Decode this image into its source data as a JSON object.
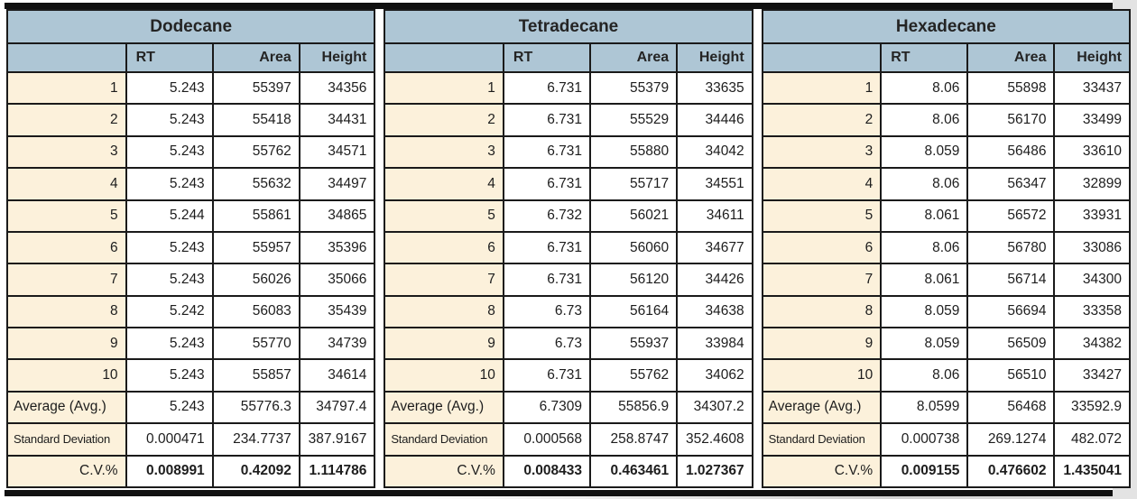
{
  "colors": {
    "header_bg": "#aec6d5",
    "label_bg": "#fcf1db",
    "cell_bg": "#ffffff",
    "grid_border": "#1a1a1a",
    "text": "#1d1d1d",
    "page_edge_gray": "#e3e3e3"
  },
  "chart_data": {
    "type": "table",
    "note": "Repeatability results table for three n-alkanes, 10 replicate injections each"
  },
  "tables": [
    {
      "title": "Dodecane",
      "headers": [
        "RT",
        "Area",
        "Height"
      ],
      "rows": [
        {
          "label": "1",
          "rt": "5.243",
          "area": "55397",
          "height": "34356"
        },
        {
          "label": "2",
          "rt": "5.243",
          "area": "55418",
          "height": "34431"
        },
        {
          "label": "3",
          "rt": "5.243",
          "area": "55762",
          "height": "34571"
        },
        {
          "label": "4",
          "rt": "5.243",
          "area": "55632",
          "height": "34497"
        },
        {
          "label": "5",
          "rt": "5.244",
          "area": "55861",
          "height": "34865"
        },
        {
          "label": "6",
          "rt": "5.243",
          "area": "55957",
          "height": "35396"
        },
        {
          "label": "7",
          "rt": "5.243",
          "area": "56026",
          "height": "35066"
        },
        {
          "label": "8",
          "rt": "5.242",
          "area": "56083",
          "height": "35439"
        },
        {
          "label": "9",
          "rt": "5.243",
          "area": "55770",
          "height": "34739"
        },
        {
          "label": "10",
          "rt": "5.243",
          "area": "55857",
          "height": "34614"
        },
        {
          "label": "Average (Avg.)",
          "rt": "5.243",
          "area": "55776.3",
          "height": "34797.4",
          "label_align": "left"
        },
        {
          "label": "Standard Deviation",
          "rt": "0.000471",
          "area": "234.7737",
          "height": "387.9167",
          "label_align": "left",
          "small_label": true
        },
        {
          "label": "C.V.%",
          "rt": "0.008991",
          "area": "0.42092",
          "height": "1.114786",
          "bold_values": true
        }
      ]
    },
    {
      "title": "Tetradecane",
      "headers": [
        "RT",
        "Area",
        "Height"
      ],
      "rows": [
        {
          "label": "1",
          "rt": "6.731",
          "area": "55379",
          "height": "33635"
        },
        {
          "label": "2",
          "rt": "6.731",
          "area": "55529",
          "height": "34446"
        },
        {
          "label": "3",
          "rt": "6.731",
          "area": "55880",
          "height": "34042"
        },
        {
          "label": "4",
          "rt": "6.731",
          "area": "55717",
          "height": "34551"
        },
        {
          "label": "5",
          "rt": "6.732",
          "area": "56021",
          "height": "34611"
        },
        {
          "label": "6",
          "rt": "6.731",
          "area": "56060",
          "height": "34677"
        },
        {
          "label": "7",
          "rt": "6.731",
          "area": "56120",
          "height": "34426"
        },
        {
          "label": "8",
          "rt": "6.73",
          "area": "56164",
          "height": "34638"
        },
        {
          "label": "9",
          "rt": "6.73",
          "area": "55937",
          "height": "33984"
        },
        {
          "label": "10",
          "rt": "6.731",
          "area": "55762",
          "height": "34062"
        },
        {
          "label": "Average (Avg.)",
          "rt": "6.7309",
          "area": "55856.9",
          "height": "34307.2",
          "label_align": "left"
        },
        {
          "label": "Standard Deviation",
          "rt": "0.000568",
          "area": "258.8747",
          "height": "352.4608",
          "label_align": "left",
          "small_label": true
        },
        {
          "label": "C.V.%",
          "rt": "0.008433",
          "area": "0.463461",
          "height": "1.027367",
          "bold_values": true
        }
      ]
    },
    {
      "title": "Hexadecane",
      "headers": [
        "RT",
        "Area",
        "Height"
      ],
      "rows": [
        {
          "label": "1",
          "rt": "8.06",
          "area": "55898",
          "height": "33437"
        },
        {
          "label": "2",
          "rt": "8.06",
          "area": "56170",
          "height": "33499"
        },
        {
          "label": "3",
          "rt": "8.059",
          "area": "56486",
          "height": "33610"
        },
        {
          "label": "4",
          "rt": "8.06",
          "area": "56347",
          "height": "32899"
        },
        {
          "label": "5",
          "rt": "8.061",
          "area": "56572",
          "height": "33931"
        },
        {
          "label": "6",
          "rt": "8.06",
          "area": "56780",
          "height": "33086"
        },
        {
          "label": "7",
          "rt": "8.061",
          "area": "56714",
          "height": "34300"
        },
        {
          "label": "8",
          "rt": "8.059",
          "area": "56694",
          "height": "33358"
        },
        {
          "label": "9",
          "rt": "8.059",
          "area": "56509",
          "height": "34382"
        },
        {
          "label": "10",
          "rt": "8.06",
          "area": "56510",
          "height": "33427"
        },
        {
          "label": "Average (Avg.)",
          "rt": "8.0599",
          "area": "56468",
          "height": "33592.9",
          "label_align": "left"
        },
        {
          "label": "Standard Deviation",
          "rt": "0.000738",
          "area": "269.1274",
          "height": "482.072",
          "label_align": "left",
          "small_label": true
        },
        {
          "label": "C.V.%",
          "rt": "0.009155",
          "area": "0.476602",
          "height": "1.435041",
          "bold_values": true
        }
      ]
    }
  ]
}
